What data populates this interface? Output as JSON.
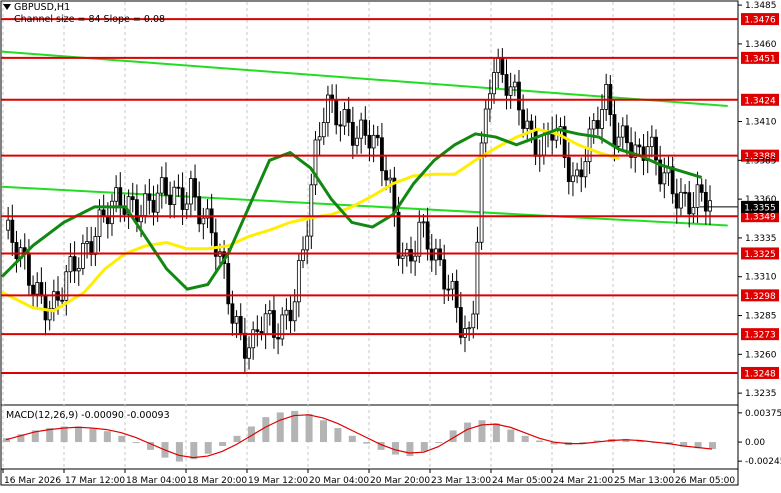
{
  "header": {
    "symbol": "GBPUSD,H1",
    "indicator": "Channel size = 84 Slope = 0.08"
  },
  "macd": {
    "label": "MACD(12,26,9) -0.00090 -0.00093",
    "ticks": [
      "0.00375",
      "0.00",
      "-0.00245"
    ]
  },
  "chart_data": {
    "type": "candlestick",
    "symbol": "GBPUSD",
    "timeframe": "H1",
    "y_ticks": [
      1.3485,
      1.346,
      1.341,
      1.3385,
      1.336,
      1.3335,
      1.331,
      1.3285,
      1.326,
      1.3235
    ],
    "y_tick_labels": [
      "1.3485",
      "1.3460",
      "1.3410",
      "1.3385",
      "1.3360",
      "1.3335",
      "1.3310",
      "1.3285",
      "1.3260",
      "1.3235"
    ],
    "x_labels": [
      "16 Mar 2026",
      "17 Mar 12:00",
      "18 Mar 04:00",
      "18 Mar 20:00",
      "19 Mar 12:00",
      "20 Mar 04:00",
      "20 Mar 20:00",
      "23 Mar 13:00",
      "24 Mar 05:00",
      "24 Mar 21:00",
      "25 Mar 13:00",
      "26 Mar 05:00"
    ],
    "levels": [
      {
        "label": "1.3476",
        "value": 1.3476
      },
      {
        "label": "1.3451",
        "value": 1.3451
      },
      {
        "label": "1.3424",
        "value": 1.3424
      },
      {
        "label": "1.3388",
        "value": 1.3388
      },
      {
        "label": "1.3349",
        "value": 1.3349
      },
      {
        "label": "1.3325",
        "value": 1.3325
      },
      {
        "label": "1.3298",
        "value": 1.3298
      },
      {
        "label": "1.3273",
        "value": 1.3273
      },
      {
        "label": "1.3248",
        "value": 1.3248
      }
    ],
    "current_price": {
      "label": "1.3355",
      "value": 1.3355
    },
    "price_path": [
      [
        0,
        1.334
      ],
      [
        2,
        1.3315
      ],
      [
        4,
        1.3295
      ],
      [
        5,
        1.329
      ],
      [
        7,
        1.332
      ],
      [
        9,
        1.3345
      ],
      [
        11,
        1.3355
      ],
      [
        13,
        1.3358
      ],
      [
        15,
        1.336
      ],
      [
        17,
        1.3362
      ],
      [
        18,
        1.337
      ],
      [
        19,
        1.335
      ],
      [
        20,
        1.3335
      ],
      [
        21,
        1.3315
      ],
      [
        22,
        1.329
      ],
      [
        23,
        1.327
      ],
      [
        24,
        1.3265
      ],
      [
        25,
        1.328
      ],
      [
        26,
        1.3275
      ],
      [
        27,
        1.3285
      ],
      [
        28,
        1.33
      ],
      [
        29,
        1.333
      ],
      [
        30,
        1.3385
      ],
      [
        31,
        1.3425
      ],
      [
        32,
        1.342
      ],
      [
        33,
        1.341
      ],
      [
        34,
        1.3395
      ],
      [
        35,
        1.34
      ],
      [
        36,
        1.3395
      ],
      [
        37,
        1.338
      ],
      [
        38,
        1.333
      ],
      [
        39,
        1.331
      ],
      [
        40,
        1.334
      ],
      [
        41,
        1.3335
      ],
      [
        42,
        1.332
      ],
      [
        43,
        1.33
      ],
      [
        44,
        1.3275
      ],
      [
        45,
        1.3265
      ],
      [
        46,
        1.3395
      ],
      [
        47,
        1.345
      ],
      [
        48,
        1.3435
      ],
      [
        49,
        1.3425
      ],
      [
        50,
        1.3415
      ],
      [
        51,
        1.34
      ],
      [
        52,
        1.3395
      ],
      [
        53,
        1.3405
      ],
      [
        54,
        1.3385
      ],
      [
        55,
        1.337
      ],
      [
        56,
        1.3395
      ],
      [
        57,
        1.341
      ],
      [
        58,
        1.342
      ],
      [
        59,
        1.3395
      ],
      [
        60,
        1.3405
      ],
      [
        61,
        1.339
      ],
      [
        62,
        1.3395
      ],
      [
        63,
        1.3375
      ],
      [
        64,
        1.3372
      ],
      [
        65,
        1.3365
      ],
      [
        66,
        1.336
      ],
      [
        67,
        1.3358
      ],
      [
        68,
        1.3355
      ]
    ],
    "sma_green": [
      [
        0,
        1.331
      ],
      [
        3,
        1.333
      ],
      [
        6,
        1.3345
      ],
      [
        9,
        1.3355
      ],
      [
        12,
        1.3355
      ],
      [
        14,
        1.3335
      ],
      [
        16,
        1.3315
      ],
      [
        18,
        1.3302
      ],
      [
        20,
        1.3305
      ],
      [
        22,
        1.3325
      ],
      [
        24,
        1.3355
      ],
      [
        26,
        1.3385
      ],
      [
        28,
        1.339
      ],
      [
        30,
        1.338
      ],
      [
        32,
        1.336
      ],
      [
        34,
        1.3345
      ],
      [
        36,
        1.3342
      ],
      [
        38,
        1.335
      ],
      [
        40,
        1.337
      ],
      [
        42,
        1.3385
      ],
      [
        44,
        1.3395
      ],
      [
        46,
        1.3402
      ],
      [
        48,
        1.34
      ],
      [
        50,
        1.3395
      ],
      [
        52,
        1.34
      ],
      [
        54,
        1.3405
      ],
      [
        56,
        1.3402
      ],
      [
        58,
        1.34
      ],
      [
        60,
        1.3392
      ],
      [
        62,
        1.3388
      ],
      [
        64,
        1.3382
      ],
      [
        66,
        1.3378
      ],
      [
        68,
        1.3374
      ]
    ],
    "sma_yellow": [
      [
        0,
        1.33
      ],
      [
        3,
        1.329
      ],
      [
        5,
        1.3288
      ],
      [
        8,
        1.33
      ],
      [
        10,
        1.3315
      ],
      [
        12,
        1.3325
      ],
      [
        14,
        1.333
      ],
      [
        16,
        1.3332
      ],
      [
        18,
        1.3328
      ],
      [
        20,
        1.3328
      ],
      [
        22,
        1.333
      ],
      [
        24,
        1.3336
      ],
      [
        26,
        1.334
      ],
      [
        28,
        1.3345
      ],
      [
        30,
        1.3348
      ],
      [
        32,
        1.335
      ],
      [
        34,
        1.3355
      ],
      [
        36,
        1.3362
      ],
      [
        38,
        1.337
      ],
      [
        40,
        1.3375
      ],
      [
        42,
        1.3376
      ],
      [
        44,
        1.3376
      ],
      [
        46,
        1.3385
      ],
      [
        48,
        1.3393
      ],
      [
        50,
        1.34
      ],
      [
        52,
        1.3405
      ],
      [
        54,
        1.3402
      ],
      [
        56,
        1.3395
      ],
      [
        58,
        1.339
      ],
      [
        60,
        1.3386
      ]
    ],
    "channel_upper": [
      [
        0,
        1.3455
      ],
      [
        68,
        1.342
      ]
    ],
    "channel_lower": [
      [
        0,
        1.3368
      ],
      [
        68,
        1.3343
      ]
    ],
    "macd_hist": [
      0.0005,
      0.001,
      0.0015,
      0.0018,
      0.002,
      0.002,
      0.0018,
      0.0014,
      0.0008,
      0.0,
      -0.001,
      -0.002,
      -0.0025,
      -0.0022,
      -0.0015,
      -0.0005,
      0.0008,
      0.002,
      0.0032,
      0.0038,
      0.004,
      0.0036,
      0.0028,
      0.0018,
      0.0008,
      -0.0002,
      -0.001,
      -0.0016,
      -0.0018,
      -0.0012,
      0.0,
      0.0015,
      0.0025,
      0.0028,
      0.0024,
      0.0016,
      0.0008,
      0.0002,
      -0.0003,
      -0.0004,
      -0.0001,
      0.0002,
      0.0004,
      0.0004,
      0.0002,
      0.0,
      -0.0003,
      -0.0006,
      -0.0008,
      -0.0009
    ],
    "macd_signal": [
      0.0003,
      0.0008,
      0.0013,
      0.0016,
      0.0018,
      0.0019,
      0.0018,
      0.0016,
      0.0012,
      0.0006,
      -0.0002,
      -0.001,
      -0.0017,
      -0.002,
      -0.0018,
      -0.0012,
      -0.0003,
      0.0008,
      0.0019,
      0.0028,
      0.0034,
      0.0035,
      0.0031,
      0.0024,
      0.0015,
      0.0006,
      -0.0003,
      -0.001,
      -0.0014,
      -0.0013,
      -0.0006,
      0.0005,
      0.0016,
      0.0022,
      0.0023,
      0.0019,
      0.0012,
      0.0005,
      0.0,
      -0.0002,
      -0.0002,
      0.0,
      0.0002,
      0.0003,
      0.0002,
      0.0,
      -0.0002,
      -0.0005,
      -0.0007,
      -0.0009
    ]
  }
}
